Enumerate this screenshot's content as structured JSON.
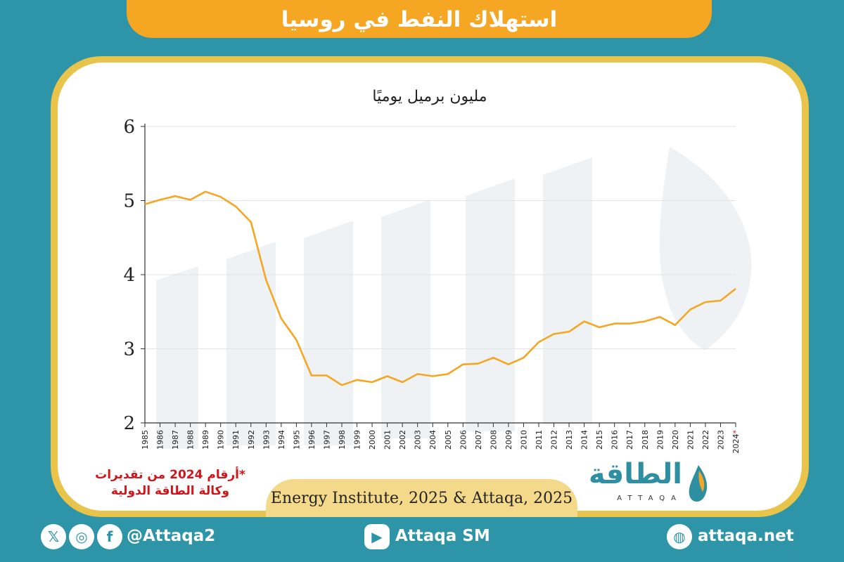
{
  "title": "استهلاك النفط في روسيا",
  "unit_label": "مليون برميل يوميًا",
  "footnote": {
    "line1": "*أرقام 2024 من تقديرات",
    "line2": "وكالة الطاقة الدولية"
  },
  "source": "Energy Institute, 2025 & Attaqa, 2025",
  "logo": {
    "text": "الطاقة",
    "sub": "ATTAQA"
  },
  "footer": {
    "handle": "@Attaqa2",
    "youtube": "Attaqa SM",
    "website": "attaqa.net"
  },
  "colors": {
    "line": "#f5a623",
    "accent": "#2e95a8",
    "banner": "#f5a623",
    "footnote": "#d0161c"
  },
  "chart_data": {
    "type": "line",
    "ylim": [
      2,
      6
    ],
    "yticks": [
      "2",
      "3",
      "4",
      "5",
      "6"
    ],
    "x": [
      "1985",
      "1986",
      "1987",
      "1988",
      "1989",
      "1990",
      "1991",
      "1992",
      "1993",
      "1994",
      "1995",
      "1996",
      "1997",
      "1998",
      "1999",
      "2000",
      "2001",
      "2002",
      "2003",
      "2004",
      "2005",
      "2006",
      "2007",
      "2008",
      "2009",
      "2010",
      "2011",
      "2012",
      "2013",
      "2014",
      "2015",
      "2016",
      "2017",
      "2018",
      "2019",
      "2020",
      "2021",
      "2022",
      "2023",
      "2024*"
    ],
    "series": [
      {
        "values": [
          4.95,
          5.01,
          5.06,
          5.01,
          5.12,
          5.05,
          4.92,
          4.71,
          3.93,
          3.41,
          3.12,
          2.64,
          2.64,
          2.51,
          2.58,
          2.55,
          2.63,
          2.55,
          2.66,
          2.63,
          2.66,
          2.79,
          2.8,
          2.88,
          2.79,
          2.88,
          3.09,
          3.2,
          3.23,
          3.37,
          3.29,
          3.34,
          3.34,
          3.37,
          3.43,
          3.32,
          3.53,
          3.63,
          3.65,
          3.81
        ]
      }
    ],
    "grid": true
  }
}
